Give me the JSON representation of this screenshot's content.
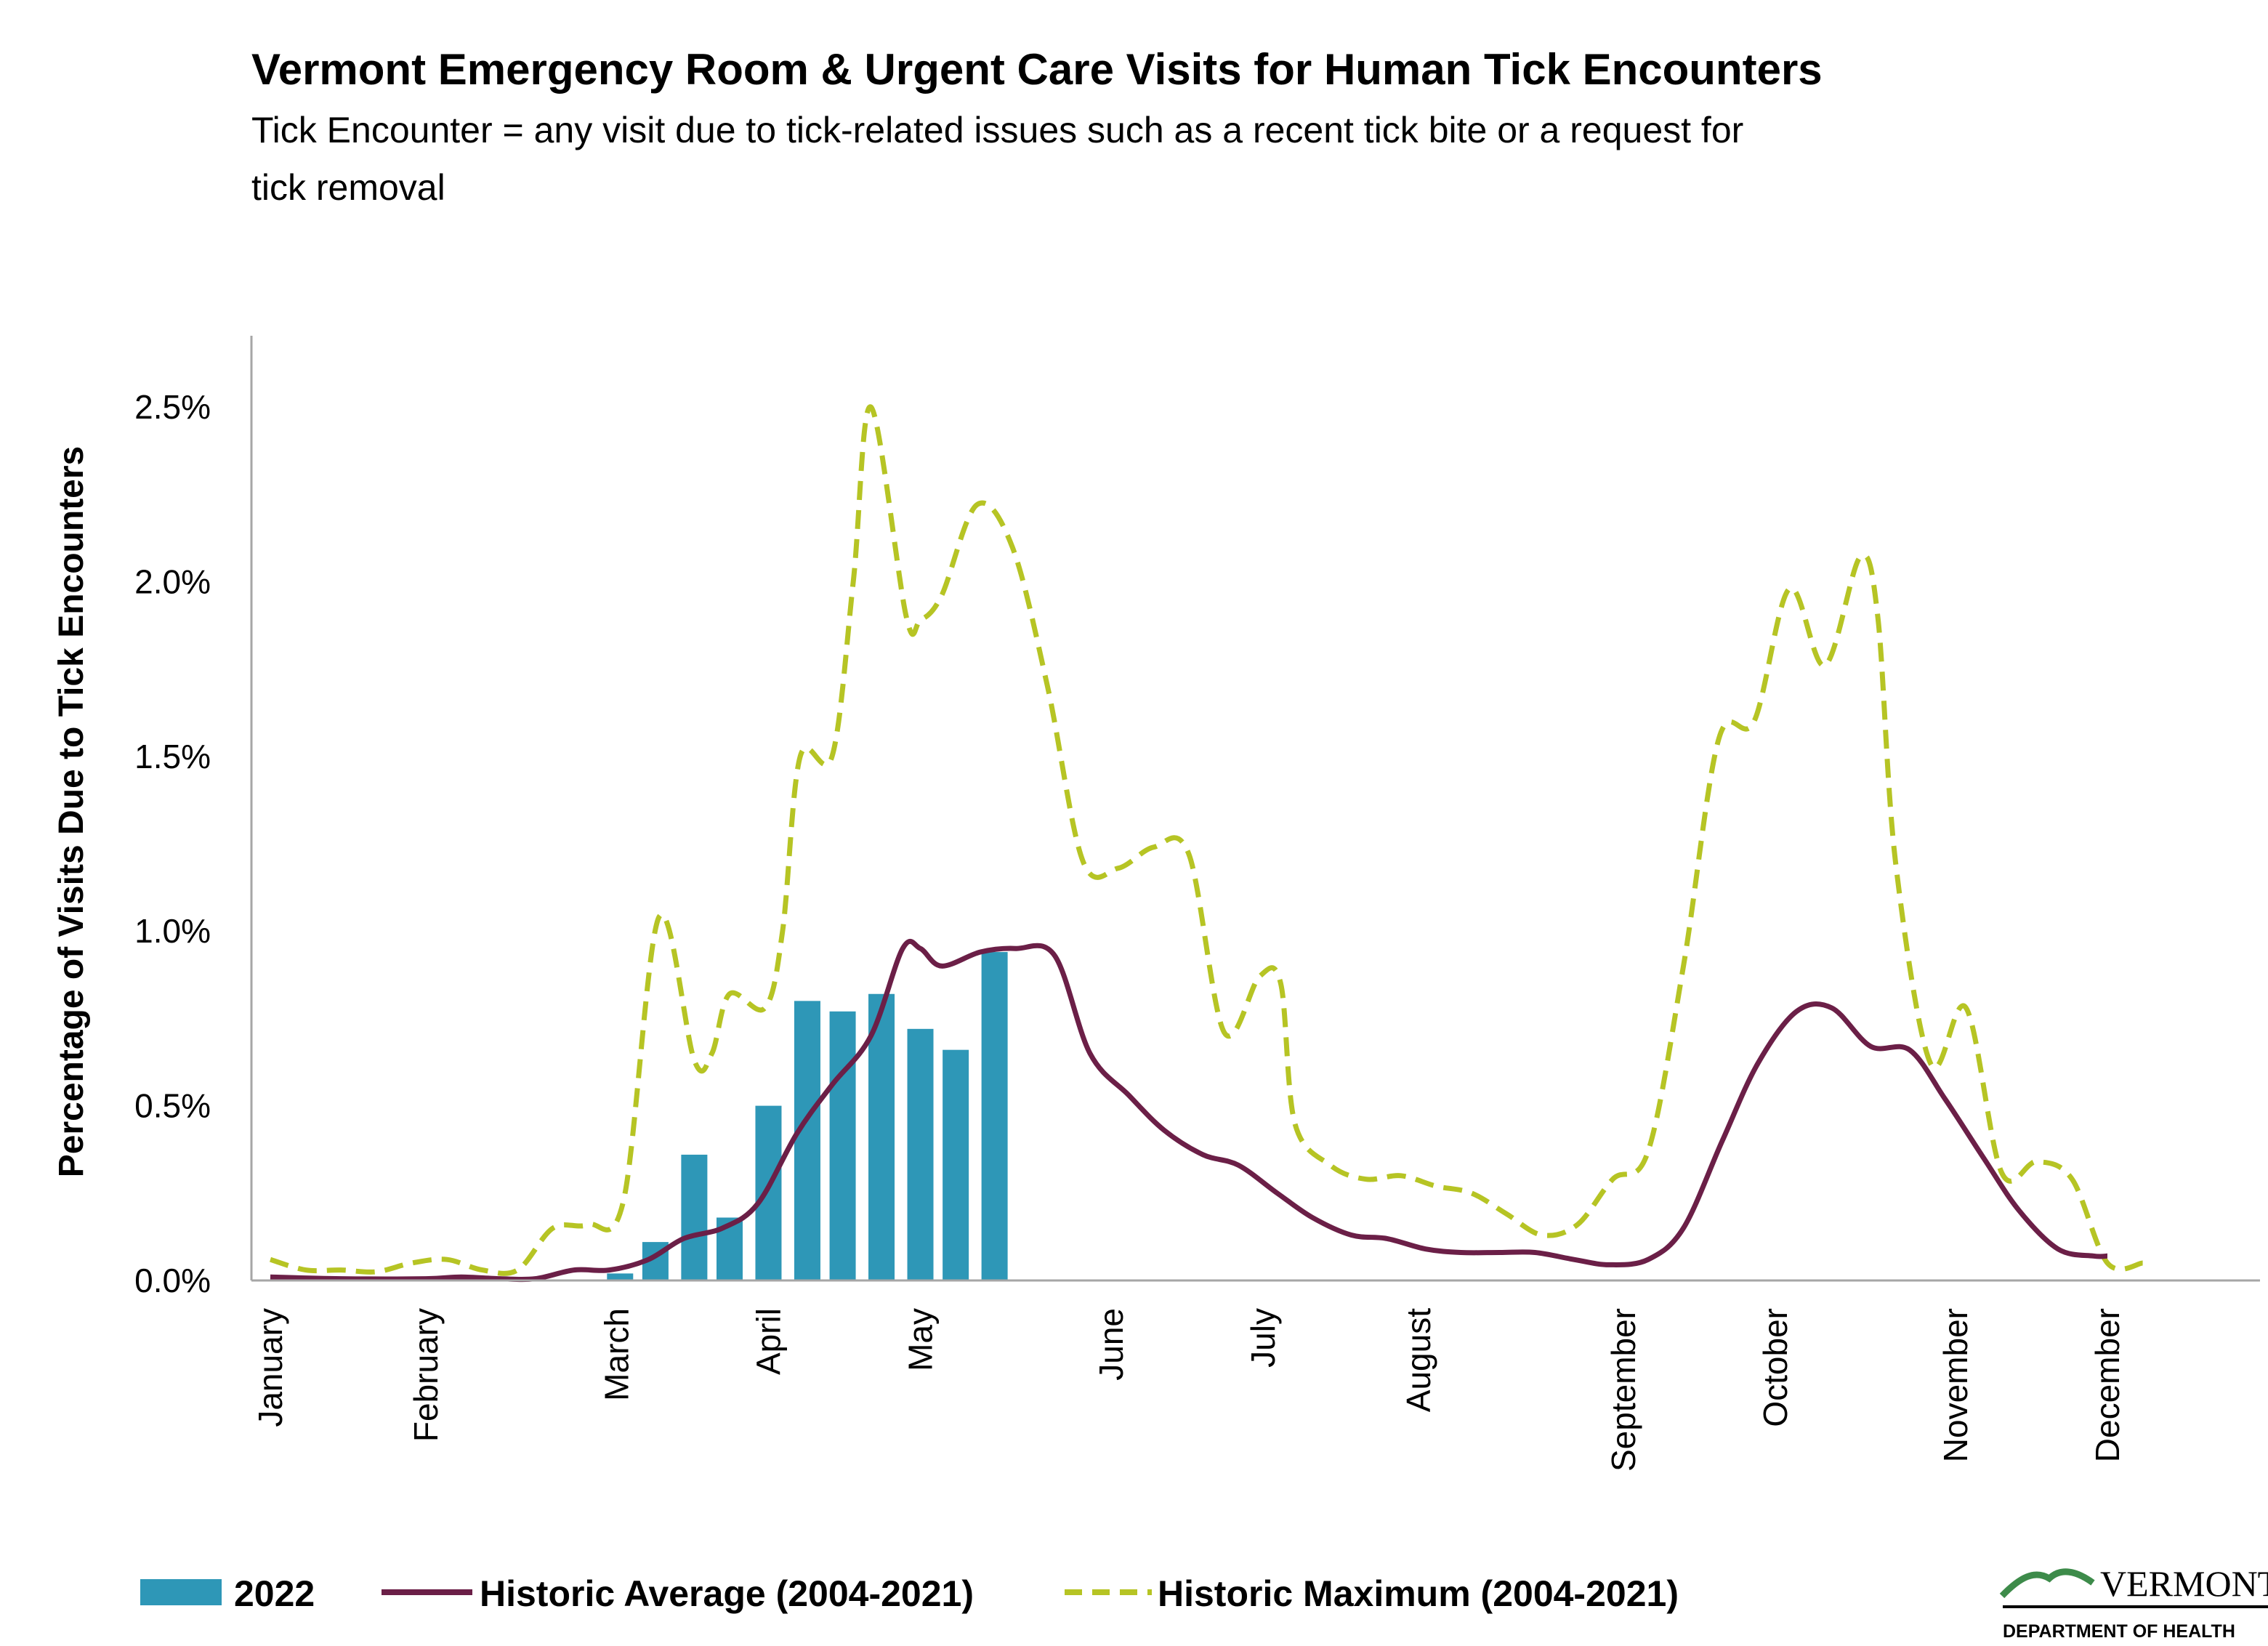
{
  "header": {
    "title": "Vermont Emergency Room & Urgent Care Visits for Human Tick Encounters",
    "subtitle_line1": "Tick Encounter = any visit due to tick-related issues such as a recent tick bite or a request for",
    "subtitle_line2": "tick removal"
  },
  "logo": {
    "name": "VERMONT",
    "sub": "DEPARTMENT OF HEALTH"
  },
  "colors": {
    "bar": "#2e97b7",
    "average": "#6b1f47",
    "maximum": "#b6c424",
    "axis": "#a6a6a6"
  },
  "chart_data": {
    "type": "bar+line",
    "title": "Vermont Emergency Room & Urgent Care Visits for Human Tick Encounters",
    "ylabel": "Percentage of Visits Due to Tick Encounters",
    "xlabel": "",
    "ylim": [
      0,
      2.6
    ],
    "y_ticks": [
      0,
      0.5,
      1.0,
      1.5,
      2.0,
      2.5
    ],
    "y_tick_labels": [
      "0.0%",
      "0.5%",
      "1.0%",
      "1.5%",
      "2.0%",
      "2.5%"
    ],
    "x_unit": "week",
    "x_range": [
      0,
      52
    ],
    "months": [
      {
        "label": "January",
        "week": 0
      },
      {
        "label": "February",
        "week": 4.4
      },
      {
        "label": "March",
        "week": 9.8
      },
      {
        "label": "April",
        "week": 14.1
      },
      {
        "label": "May",
        "week": 18.4
      },
      {
        "label": "June",
        "week": 23.8
      },
      {
        "label": "July",
        "week": 28.1
      },
      {
        "label": "August",
        "week": 32.5
      },
      {
        "label": "September",
        "week": 38.3
      },
      {
        "label": "October",
        "week": 42.6
      },
      {
        "label": "November",
        "week": 47.7
      },
      {
        "label": "December",
        "week": 52.0
      }
    ],
    "grid": false,
    "legend_position": "bottom",
    "series": [
      {
        "name": "2022",
        "type": "bar",
        "x": [
          9.9,
          10.9,
          12.0,
          13.0,
          14.1,
          15.2,
          16.2,
          17.3,
          18.4,
          19.4,
          20.5,
          21.5
        ],
        "values": [
          0.02,
          0.11,
          0.36,
          0.18,
          0.5,
          0.8,
          0.77,
          0.82,
          0.72,
          0.66,
          0.94,
          0.0
        ]
      },
      {
        "name": "Historic Average (2004-2021)",
        "type": "line",
        "x": [
          0,
          2.0,
          4.4,
          5.4,
          6.5,
          7.5,
          8.6,
          9.6,
          10.7,
          11.7,
          12.8,
          13.8,
          14.9,
          15.9,
          17.0,
          17.9,
          18.4,
          19.0,
          20.1,
          21.1,
          22.2,
          23.2,
          24.3,
          25.3,
          26.4,
          27.4,
          28.5,
          29.5,
          30.6,
          31.6,
          32.7,
          33.7,
          34.8,
          35.8,
          36.9,
          37.9,
          39.0,
          40.0,
          41.1,
          42.1,
          43.2,
          44.2,
          45.3,
          46.4,
          47.4,
          48.5,
          49.5,
          50.6,
          51.6,
          52.0
        ],
        "values": [
          0.01,
          0.005,
          0.005,
          0.01,
          0.005,
          0.005,
          0.03,
          0.03,
          0.06,
          0.12,
          0.15,
          0.22,
          0.42,
          0.56,
          0.7,
          0.95,
          0.95,
          0.9,
          0.94,
          0.95,
          0.93,
          0.65,
          0.53,
          0.43,
          0.36,
          0.33,
          0.25,
          0.18,
          0.13,
          0.12,
          0.09,
          0.08,
          0.08,
          0.08,
          0.06,
          0.045,
          0.06,
          0.15,
          0.4,
          0.62,
          0.77,
          0.78,
          0.67,
          0.66,
          0.52,
          0.35,
          0.2,
          0.09,
          0.07,
          0.07
        ]
      },
      {
        "name": "Historic Maximum (2004-2021)",
        "type": "line",
        "x": [
          0,
          1.0,
          2.0,
          3.0,
          4.0,
          5.0,
          6.0,
          7.0,
          8.0,
          9.0,
          10.0,
          11.0,
          12.0,
          12.5,
          13.0,
          14.0,
          14.5,
          15.0,
          15.9,
          16.5,
          17.0,
          18.0,
          18.4,
          19.0,
          20.0,
          21.0,
          22.0,
          23.0,
          24.0,
          25.0,
          26.0,
          27.0,
          28.0,
          28.6,
          29.0,
          30.0,
          31.0,
          32.0,
          33.0,
          34.0,
          35.0,
          36.0,
          37.0,
          38.0,
          39.0,
          40.0,
          41.0,
          42.0,
          43.0,
          44.0,
          45.0,
          45.5,
          46.0,
          47.0,
          48.0,
          49.0,
          50.0,
          51.0,
          52.0,
          53.0
        ],
        "values": [
          0.06,
          0.03,
          0.03,
          0.025,
          0.05,
          0.06,
          0.03,
          0.03,
          0.15,
          0.16,
          0.23,
          1.04,
          0.63,
          0.65,
          0.82,
          0.78,
          1.0,
          1.5,
          1.5,
          2.0,
          2.5,
          1.9,
          1.89,
          1.96,
          2.22,
          2.1,
          1.7,
          1.2,
          1.18,
          1.24,
          1.22,
          0.71,
          0.87,
          0.85,
          0.45,
          0.33,
          0.29,
          0.3,
          0.27,
          0.25,
          0.19,
          0.13,
          0.16,
          0.29,
          0.37,
          0.9,
          1.55,
          1.6,
          1.98,
          1.76,
          2.07,
          1.9,
          1.2,
          0.62,
          0.78,
          0.31,
          0.34,
          0.29,
          0.05,
          0.05
        ]
      }
    ]
  }
}
